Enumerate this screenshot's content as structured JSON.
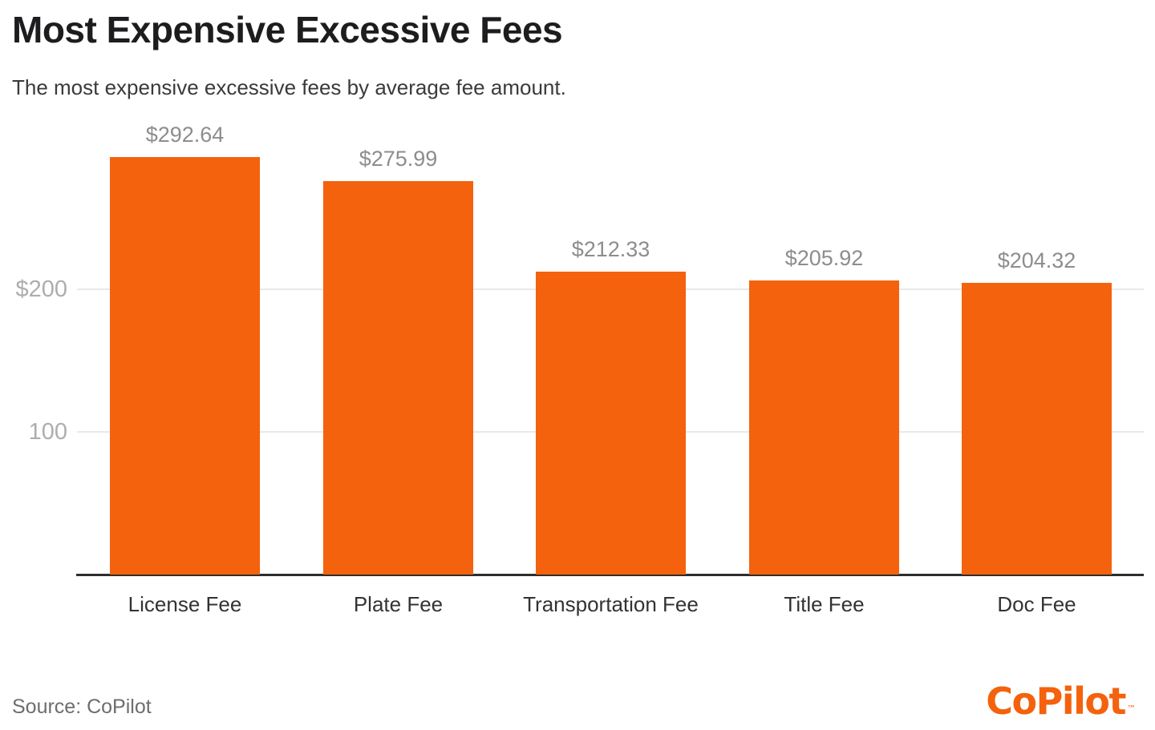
{
  "header": {
    "title": "Most Expensive Excessive Fees",
    "subtitle": "The most expensive excessive fees by average fee amount."
  },
  "chart_data": {
    "type": "bar",
    "title": "Most Expensive Excessive Fees",
    "subtitle": "The most expensive excessive fees by average fee amount.",
    "categories": [
      "License Fee",
      "Plate Fee",
      "Transportation Fee",
      "Title Fee",
      "Doc Fee"
    ],
    "values": [
      292.64,
      275.99,
      212.33,
      205.92,
      204.32
    ],
    "value_labels": [
      "$292.64",
      "$275.99",
      "$212.33",
      "$205.92",
      "$204.32"
    ],
    "xlabel": "",
    "ylabel": "",
    "ylim": [
      0,
      315
    ],
    "yticks": [
      {
        "value": 200,
        "label": "$200"
      },
      {
        "value": 100,
        "label": "100"
      }
    ],
    "grid": true,
    "legend_position": "none",
    "bar_color": "#F4620D",
    "gridline_color": "#e9e9e9",
    "axis_line_color": "#2d2d2d",
    "value_label_color": "#8d8d8d",
    "ytick_label_color": "#adadad",
    "category_label_color": "#333333"
  },
  "footer": {
    "source": "Source: CoPilot",
    "logo_text": "CoPilot",
    "logo_tm": "™",
    "logo_color": "#F4620D"
  }
}
